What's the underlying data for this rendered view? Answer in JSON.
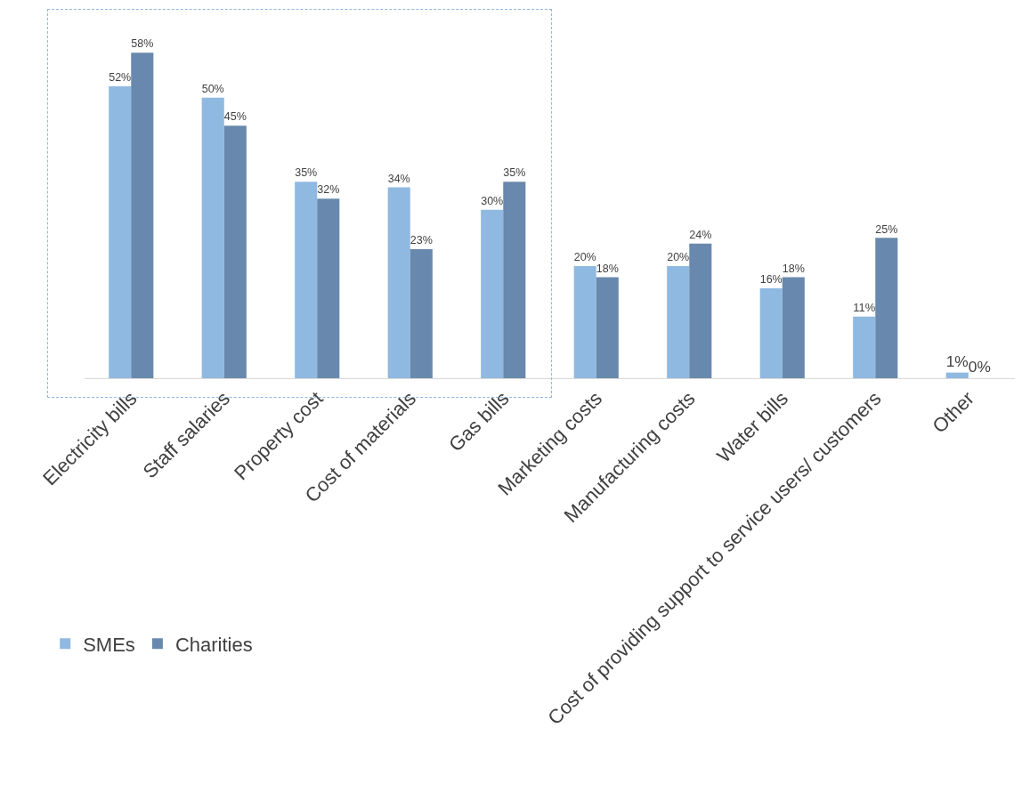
{
  "chart_data": {
    "type": "bar",
    "categories": [
      "Electricity bills",
      "Staff salaries",
      "Property cost",
      "Cost of materials",
      "Gas bills",
      "Marketing costs",
      "Manufacturing costs",
      "Water bills",
      "Cost of providing support to service users/ customers",
      "Other"
    ],
    "series": [
      {
        "name": "SMEs",
        "color": "#8fb9e0",
        "values": [
          52,
          50,
          35,
          34,
          30,
          20,
          20,
          16,
          11,
          1
        ],
        "value_labels": [
          "52%",
          "50%",
          "35%",
          "34%",
          "30%",
          "20%",
          "20%",
          "16%",
          "11%",
          "1%"
        ]
      },
      {
        "name": "Charities",
        "color": "#6889ad",
        "values": [
          58,
          45,
          32,
          23,
          35,
          18,
          24,
          18,
          25,
          0
        ],
        "value_labels": [
          "58%",
          "45%",
          "32%",
          "23%",
          "35%",
          "18%",
          "24%",
          "18%",
          "25%",
          "0%"
        ]
      }
    ],
    "legend": "bottom left",
    "grid": false
  }
}
